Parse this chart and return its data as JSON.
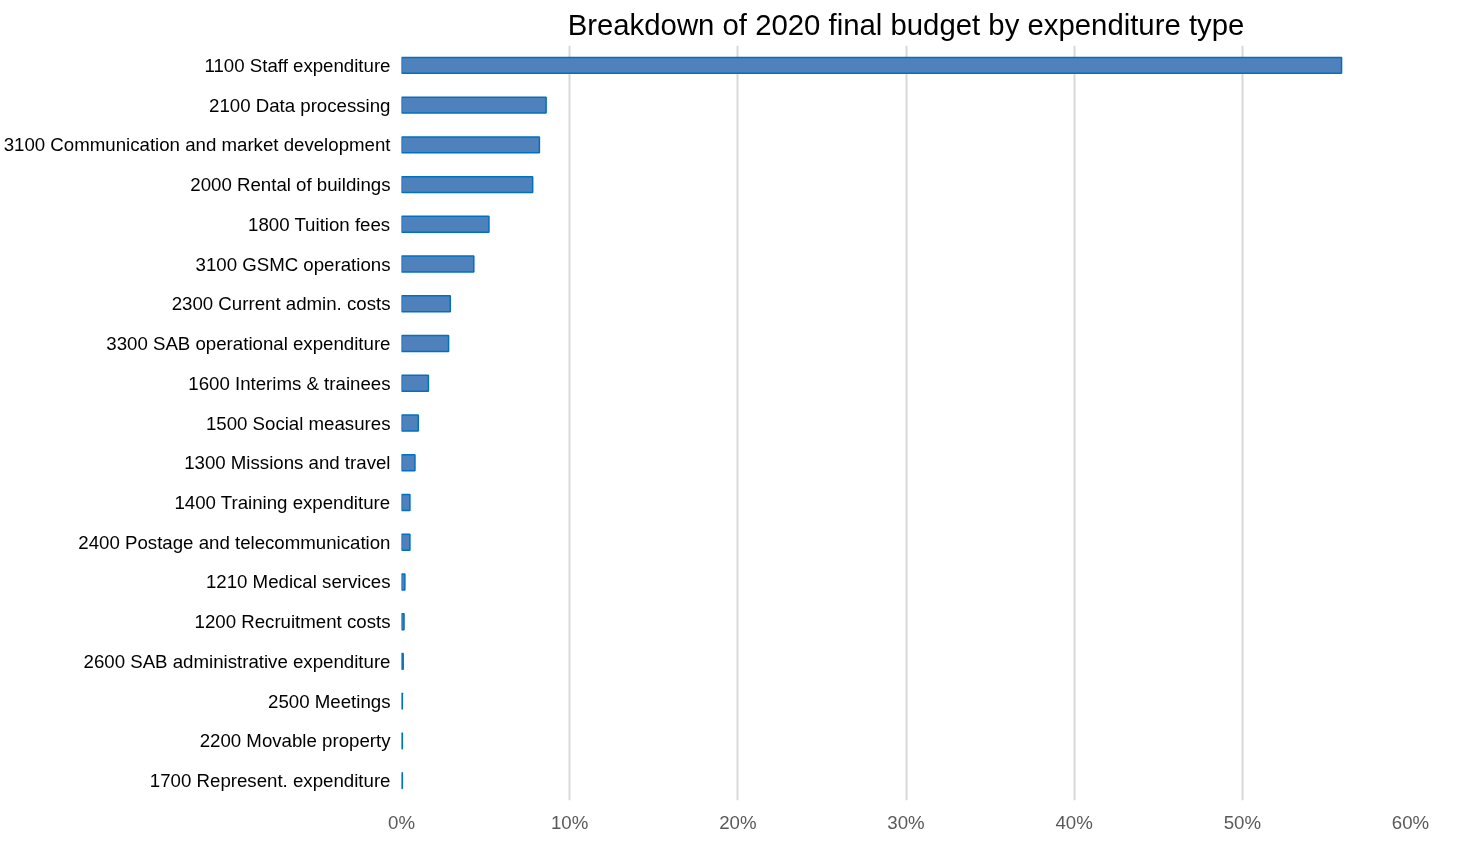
{
  "chart_data": {
    "type": "bar",
    "orientation": "horizontal",
    "title": "Breakdown of 2020 final budget by expenditure type",
    "categories": [
      "1100 Staff expenditure",
      "2100 Data processing",
      "3100 Communication and market development",
      "2000 Rental of buildings",
      "1800 Tuition fees",
      "3100 GSMC operations",
      "2300 Current admin. costs",
      "3300 SAB operational expenditure",
      "1600 Interims & trainees",
      "1500 Social measures",
      "1300 Missions and travel",
      "1400 Training expenditure",
      "2400 Postage and telecommunication",
      "1210 Medical services",
      "1200 Recruitment costs",
      "2600 SAB administrative expenditure",
      "2500 Meetings",
      "2200 Movable property",
      "1700 Represent. expenditure"
    ],
    "values": [
      55.9,
      8.6,
      8.2,
      7.8,
      5.2,
      4.3,
      2.9,
      2.8,
      1.6,
      1.0,
      0.8,
      0.5,
      0.5,
      0.2,
      0.15,
      0.1,
      0.05,
      0.05,
      0.05
    ],
    "color": "#4f81bd",
    "xlim": [
      0,
      60
    ],
    "xticks": [
      {
        "value": 0,
        "label": "0%"
      },
      {
        "value": 10,
        "label": "10%"
      },
      {
        "value": 20,
        "label": "20%"
      },
      {
        "value": 30,
        "label": "30%"
      },
      {
        "value": 40,
        "label": "40%"
      },
      {
        "value": 50,
        "label": "50%"
      },
      {
        "value": 60,
        "label": "60%"
      }
    ],
    "grid": "x"
  }
}
